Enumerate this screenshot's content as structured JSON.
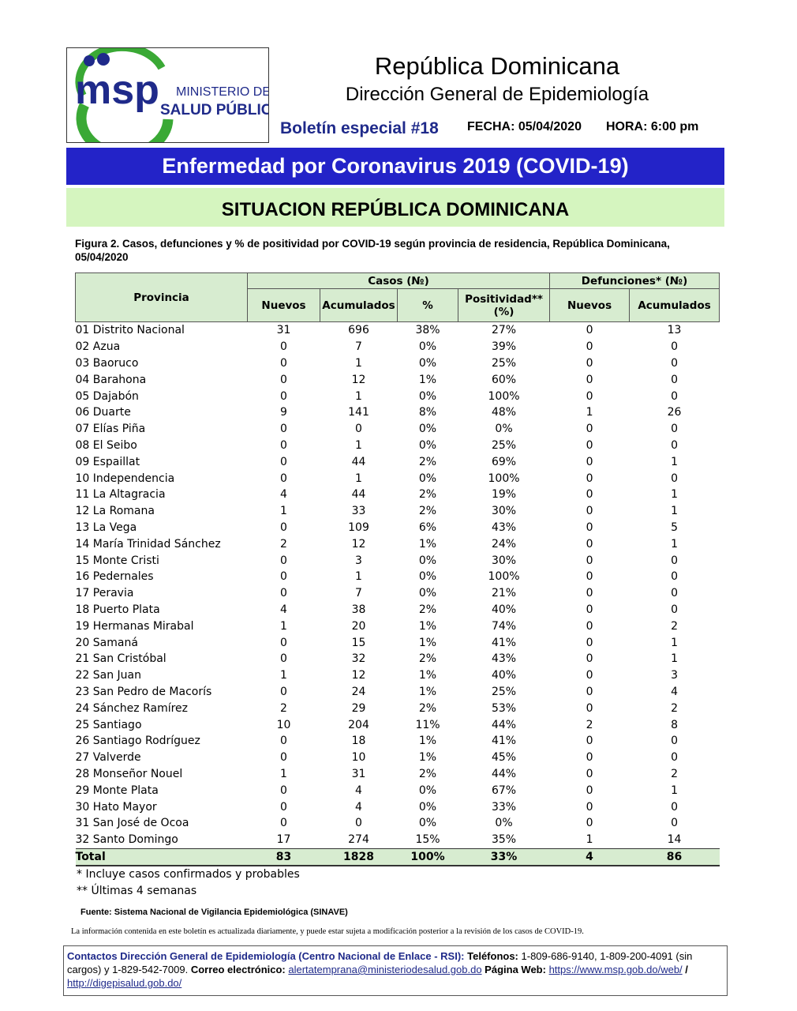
{
  "header": {
    "logo": {
      "acronym": "msp",
      "line1": "MINISTERIO DE",
      "line2": "SALUD PÚBLICA"
    },
    "title": "República Dominicana",
    "subtitle": "Dirección General de Epidemiología",
    "bulletin": "Boletín especial #18",
    "date": "FECHA: 05/04/2020",
    "time": "HORA: 6:00 pm"
  },
  "banner": "Enfermedad por Coronavirus 2019 (COVID-19)",
  "section_title": "SITUACION REPÚBLICA DOMINICANA",
  "caption": "Figura 2. Casos, defunciones y % de positividad por COVID-19 según provincia de residencia, República Dominicana, 05/04/2020",
  "table": {
    "header": {
      "province": "Provincia",
      "cases": "Casos (№)",
      "deaths": "Defunciones* (№)",
      "sub": [
        "Nuevos",
        "Acumulados",
        "%",
        "Positividad** (%)",
        "Nuevos",
        "Acumulados"
      ]
    },
    "rows": [
      [
        "01 Distrito Nacional",
        "31",
        "696",
        "38%",
        "27%",
        "0",
        "13"
      ],
      [
        "02 Azua",
        "0",
        "7",
        "0%",
        "39%",
        "0",
        "0"
      ],
      [
        "03 Baoruco",
        "0",
        "1",
        "0%",
        "25%",
        "0",
        "0"
      ],
      [
        "04 Barahona",
        "0",
        "12",
        "1%",
        "60%",
        "0",
        "0"
      ],
      [
        "05 Dajabón",
        "0",
        "1",
        "0%",
        "100%",
        "0",
        "0"
      ],
      [
        "06 Duarte",
        "9",
        "141",
        "8%",
        "48%",
        "1",
        "26"
      ],
      [
        "07 Elías Piña",
        "0",
        "0",
        "0%",
        "0%",
        "0",
        "0"
      ],
      [
        "08 El Seibo",
        "0",
        "1",
        "0%",
        "25%",
        "0",
        "0"
      ],
      [
        "09 Espaillat",
        "0",
        "44",
        "2%",
        "69%",
        "0",
        "1"
      ],
      [
        "10 Independencia",
        "0",
        "1",
        "0%",
        "100%",
        "0",
        "0"
      ],
      [
        "11 La Altagracia",
        "4",
        "44",
        "2%",
        "19%",
        "0",
        "1"
      ],
      [
        "12 La Romana",
        "1",
        "33",
        "2%",
        "30%",
        "0",
        "1"
      ],
      [
        "13 La Vega",
        "0",
        "109",
        "6%",
        "43%",
        "0",
        "5"
      ],
      [
        "14 María Trinidad Sánchez",
        "2",
        "12",
        "1%",
        "24%",
        "0",
        "1"
      ],
      [
        "15 Monte Cristi",
        "0",
        "3",
        "0%",
        "30%",
        "0",
        "0"
      ],
      [
        "16 Pedernales",
        "0",
        "1",
        "0%",
        "100%",
        "0",
        "0"
      ],
      [
        "17 Peravia",
        "0",
        "7",
        "0%",
        "21%",
        "0",
        "0"
      ],
      [
        "18 Puerto Plata",
        "4",
        "38",
        "2%",
        "40%",
        "0",
        "0"
      ],
      [
        "19 Hermanas Mirabal",
        "1",
        "20",
        "1%",
        "74%",
        "0",
        "2"
      ],
      [
        "20 Samaná",
        "0",
        "15",
        "1%",
        "41%",
        "0",
        "1"
      ],
      [
        "21 San Cristóbal",
        "0",
        "32",
        "2%",
        "43%",
        "0",
        "1"
      ],
      [
        "22 San Juan",
        "1",
        "12",
        "1%",
        "40%",
        "0",
        "3"
      ],
      [
        "23 San Pedro de Macorís",
        "0",
        "24",
        "1%",
        "25%",
        "0",
        "4"
      ],
      [
        "24 Sánchez Ramírez",
        "2",
        "29",
        "2%",
        "53%",
        "0",
        "2"
      ],
      [
        "25 Santiago",
        "10",
        "204",
        "11%",
        "44%",
        "2",
        "8"
      ],
      [
        "26 Santiago Rodríguez",
        "0",
        "18",
        "1%",
        "41%",
        "0",
        "0"
      ],
      [
        "27 Valverde",
        "0",
        "10",
        "1%",
        "45%",
        "0",
        "0"
      ],
      [
        "28 Monseñor Nouel",
        "1",
        "31",
        "2%",
        "44%",
        "0",
        "2"
      ],
      [
        "29 Monte Plata",
        "0",
        "4",
        "0%",
        "67%",
        "0",
        "1"
      ],
      [
        "30 Hato Mayor",
        "0",
        "4",
        "0%",
        "33%",
        "0",
        "0"
      ],
      [
        "31 San José de Ocoa",
        "0",
        "0",
        "0%",
        "0%",
        "0",
        "0"
      ],
      [
        "32 Santo Domingo",
        "17",
        "274",
        "15%",
        "35%",
        "1",
        "14"
      ]
    ],
    "total": [
      "Total",
      "83",
      "1828",
      "100%",
      "33%",
      "4",
      "86"
    ]
  },
  "footnotes": [
    "* Incluye casos confirmados y probables",
    "** Últimas 4 semanas"
  ],
  "source": "Fuente: Sistema Nacional de Vigilancia Epidemiológica (SINAVE)",
  "info": "La información contenida en este boletín es actualizada diariamente, y puede estar sujeta a modificación posterior a la revisión de los casos de COVID-19.",
  "contact": {
    "label": "Contactos Dirección General de Epidemiología (Centro Nacional de Enlace - RSI):",
    "phones_label": "Teléfonos:",
    "phones": "1-809-686-9140, 1-809-200-4091 (sin cargos) y 1-829-542-7009.",
    "email_label": "Correo electrónico:",
    "email": "alertatemprana@ministeriodesalud.gob.do",
    "web_label": "Página Web:",
    "web1": "https://www.msp.gob.do/web/",
    "sep": "/",
    "web2": "http://digepisalud.gob.do/"
  }
}
